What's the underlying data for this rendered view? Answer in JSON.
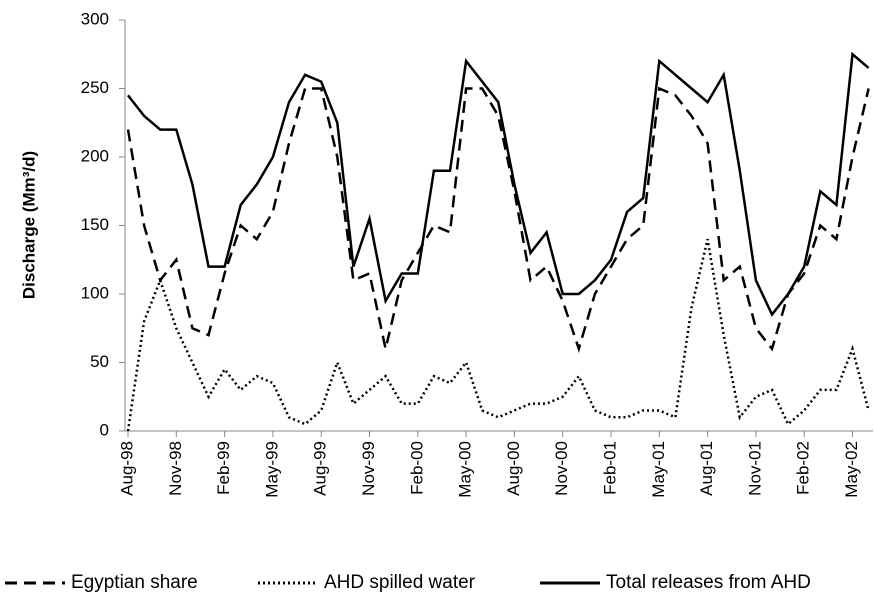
{
  "chart_data": {
    "type": "line",
    "ylabel": "Discharge (Mm³/d)",
    "categories": [
      "Aug-98",
      null,
      null,
      "Nov-98",
      null,
      null,
      "Feb-99",
      null,
      null,
      "May-99",
      null,
      null,
      "Aug-99",
      null,
      null,
      "Nov-99",
      null,
      null,
      "Feb-00",
      null,
      null,
      "May-00",
      null,
      null,
      "Aug-00",
      null,
      null,
      "Nov-00",
      null,
      null,
      "Feb-01",
      null,
      null,
      "May-01",
      null,
      null,
      "Aug-01",
      null,
      null,
      "Nov-01",
      null,
      null,
      "Feb-02",
      null,
      null,
      "May-02",
      null
    ],
    "series": [
      {
        "name": "Egyptian share",
        "color": "#000000",
        "dash": "dashed",
        "values": [
          220,
          150,
          110,
          125,
          75,
          70,
          115,
          150,
          140,
          160,
          210,
          250,
          250,
          200,
          110,
          115,
          60,
          110,
          130,
          150,
          145,
          250,
          250,
          230,
          175,
          110,
          120,
          95,
          60,
          100,
          120,
          140,
          150,
          250,
          245,
          230,
          210,
          110,
          120,
          75,
          60,
          100,
          115,
          150,
          140,
          200,
          250
        ]
      },
      {
        "name": "AHD spilled water",
        "color": "#000000",
        "dash": "dotted",
        "values": [
          0,
          80,
          110,
          75,
          50,
          25,
          45,
          30,
          40,
          35,
          10,
          5,
          15,
          50,
          20,
          30,
          40,
          20,
          20,
          40,
          35,
          50,
          15,
          10,
          15,
          20,
          20,
          25,
          40,
          15,
          10,
          10,
          15,
          15,
          10,
          90,
          140,
          70,
          10,
          25,
          30,
          5,
          15,
          30,
          30,
          60,
          15
        ]
      },
      {
        "name": "Total releases from AHD",
        "color": "#000000",
        "dash": "solid",
        "values": [
          245,
          230,
          220,
          220,
          180,
          120,
          120,
          165,
          180,
          200,
          240,
          260,
          255,
          225,
          120,
          155,
          95,
          115,
          115,
          190,
          190,
          270,
          255,
          240,
          180,
          130,
          145,
          100,
          100,
          110,
          125,
          160,
          170,
          270,
          260,
          250,
          240,
          260,
          190,
          110,
          85,
          100,
          120,
          175,
          165,
          275,
          265
        ]
      }
    ],
    "ylim": [
      0,
      300
    ],
    "yticks": [
      0,
      50,
      100,
      150,
      200,
      250,
      300
    ],
    "grid": false,
    "legend": "bottom"
  }
}
